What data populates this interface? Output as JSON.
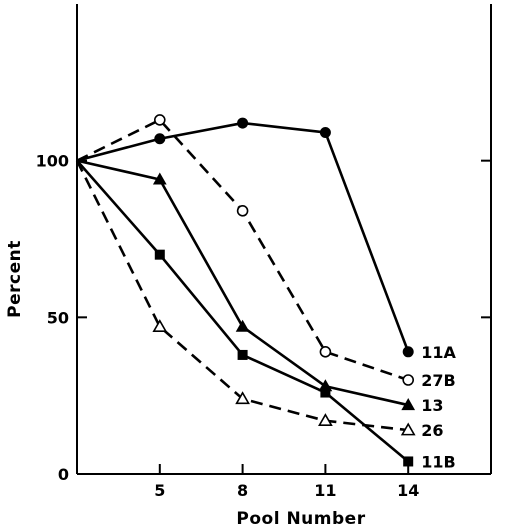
{
  "chart_data": {
    "type": "line",
    "title": "",
    "xlabel": "Pool Number",
    "ylabel": "Percent",
    "x_ticks": [
      5,
      8,
      11,
      14
    ],
    "y_ticks": [
      0,
      50,
      100
    ],
    "xlim": [
      2,
      17
    ],
    "ylim": [
      0,
      150
    ],
    "grid": false,
    "legend": "inline-right",
    "series": [
      {
        "name": "11A",
        "style": "solid",
        "marker": "filled-circle",
        "x": [
          2,
          5,
          8,
          11,
          14
        ],
        "y": [
          100,
          107,
          112,
          109,
          39
        ]
      },
      {
        "name": "27B",
        "style": "dashed",
        "marker": "open-circle",
        "x": [
          2,
          5,
          8,
          11,
          14
        ],
        "y": [
          100,
          113,
          84,
          39,
          30
        ]
      },
      {
        "name": "13",
        "style": "solid",
        "marker": "filled-triangle",
        "x": [
          2,
          5,
          8,
          11,
          14
        ],
        "y": [
          100,
          94,
          47,
          28,
          22
        ]
      },
      {
        "name": "26",
        "style": "dashed",
        "marker": "open-triangle",
        "x": [
          2,
          5,
          8,
          11,
          14
        ],
        "y": [
          100,
          47,
          24,
          17,
          14
        ]
      },
      {
        "name": "11B",
        "style": "solid",
        "marker": "filled-square",
        "x": [
          2,
          5,
          8,
          11,
          14
        ],
        "y": [
          100,
          70,
          38,
          26,
          4
        ]
      }
    ]
  }
}
